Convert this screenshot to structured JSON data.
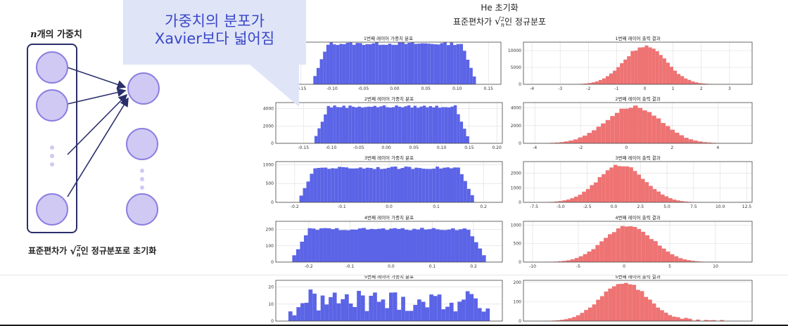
{
  "diagram": {
    "title_var": "n",
    "title_rest": "개의 가중치",
    "caption_pre": "표준편차가 ",
    "caption_post": "인 정규분포로 초기화",
    "sqrt_num": "2",
    "sqrt_den": "n"
  },
  "callout": {
    "line1": "가중치의 분포가",
    "line2": "Xavier보다 넓어짐"
  },
  "header": {
    "title": "He 초기화",
    "subtitle_pre": "표준편차가 ",
    "subtitle_post": "인 정규분포"
  },
  "colors": {
    "weight": "#5b64e6",
    "output": "#ee7373",
    "neuron": "#cfc9f4",
    "neuron_border": "#8b7fe0",
    "callout": "#dfe5f7"
  },
  "chart_data": [
    {
      "type": "bar",
      "title": "1번째 레이어 가중치 분포",
      "dist": "uniform",
      "xlim": [
        -0.19,
        0.17
      ],
      "data_range": [
        -0.13,
        0.13
      ],
      "peak": 12000,
      "ylim": [
        0,
        12000
      ],
      "yticks": [],
      "xticks": [
        -0.15,
        -0.1,
        -0.05,
        0.0,
        0.05,
        0.1,
        0.15
      ],
      "xtick_labels": [
        "-0.15",
        "-0.10",
        "-0.05",
        "0.00",
        "0.05",
        "0.10",
        "0.15"
      ]
    },
    {
      "type": "bar",
      "title": "1번째 레이어 출력 결과",
      "dist": "normal",
      "xlim": [
        -4.3,
        3.8
      ],
      "mu": 0.0,
      "sigma": 0.75,
      "peak": 11500,
      "ylim": [
        0,
        12500
      ],
      "yticks": [
        0,
        5000,
        10000
      ],
      "ytick_labels": [
        "0",
        "5000",
        "10000"
      ],
      "xticks": [
        -4,
        -3,
        -2,
        -1,
        0,
        1,
        2,
        3
      ],
      "xtick_labels": [
        "-4",
        "-3",
        "-2",
        "-1",
        "0",
        "1",
        "2",
        "3"
      ]
    },
    {
      "type": "bar",
      "title": "2번째 레이어 가중치 분포",
      "dist": "uniform",
      "xlim": [
        -0.2,
        0.21
      ],
      "data_range": [
        -0.13,
        0.15
      ],
      "peak": 4400,
      "ylim": [
        0,
        4700
      ],
      "yticks": [
        0,
        2000,
        4000
      ],
      "ytick_labels": [
        "0",
        "2000",
        "4000"
      ],
      "xticks": [
        -0.15,
        -0.1,
        -0.05,
        0.0,
        0.05,
        0.1,
        0.15,
        0.2
      ],
      "xtick_labels": [
        "-0.15",
        "-0.10",
        "-0.05",
        "0.00",
        "0.05",
        "0.10",
        "0.15",
        "0.20"
      ]
    },
    {
      "type": "bar",
      "title": "2번째 레이어 출력 결과",
      "dist": "normal",
      "xlim": [
        -4.5,
        5.5
      ],
      "mu": 0.3,
      "sigma": 1.2,
      "peak": 4200,
      "ylim": [
        0,
        4600
      ],
      "yticks": [
        0,
        2000,
        4000
      ],
      "ytick_labels": [
        "0",
        "2000",
        "4000"
      ],
      "xticks": [
        -4,
        -2,
        0,
        2,
        4
      ],
      "xtick_labels": [
        "-4",
        "-2",
        "0",
        "2",
        "4"
      ]
    },
    {
      "type": "bar",
      "title": "3번째 레이어 가중치 분포",
      "dist": "uniform",
      "xlim": [
        -0.24,
        0.24
      ],
      "data_range": [
        -0.19,
        0.18
      ],
      "peak": 950,
      "ylim": [
        0,
        1080
      ],
      "yticks": [
        0,
        500,
        1000
      ],
      "ytick_labels": [
        "0",
        "500",
        "1000"
      ],
      "xticks": [
        -0.2,
        -0.1,
        0.0,
        0.1,
        0.2
      ],
      "xtick_labels": [
        "-0.2",
        "-0.1",
        "0.0",
        "0.1",
        "0.2"
      ]
    },
    {
      "type": "bar",
      "title": "3번째 레이어 출력 결과",
      "dist": "normal",
      "xlim": [
        -8.5,
        13
      ],
      "mu": 0.7,
      "sigma": 2.2,
      "peak": 2600,
      "ylim": [
        0,
        2800
      ],
      "yticks": [
        0,
        1000,
        2000
      ],
      "ytick_labels": [
        "0",
        "1000",
        "2000"
      ],
      "xticks": [
        -7.5,
        -5.0,
        -2.5,
        0.0,
        2.5,
        5.0,
        7.5,
        10.0,
        12.5
      ],
      "xtick_labels": [
        "-7.5",
        "-5.0",
        "-2.5",
        "0.0",
        "2.5",
        "5.0",
        "7.5",
        "10.0",
        "12.5"
      ]
    },
    {
      "type": "bar",
      "title": "4번째 레이어 가중치 분포",
      "dist": "uniform",
      "xlim": [
        -0.28,
        0.27
      ],
      "data_range": [
        -0.24,
        0.23
      ],
      "peak": 210,
      "ylim": [
        0,
        250
      ],
      "yticks": [
        0,
        100,
        200
      ],
      "ytick_labels": [
        "0",
        "100",
        "200"
      ],
      "xticks": [
        -0.2,
        -0.1,
        0.0,
        0.1,
        0.2
      ],
      "xtick_labels": [
        "-0.2",
        "-0.1",
        "0.0",
        "0.1",
        "0.2"
      ]
    },
    {
      "type": "bar",
      "title": "4번째 레이어 출력 결과",
      "dist": "normal",
      "xlim": [
        -11,
        14
      ],
      "mu": 0.5,
      "sigma": 2.7,
      "peak": 1000,
      "ylim": [
        0,
        1100
      ],
      "yticks": [
        0,
        500,
        1000
      ],
      "ytick_labels": [
        "0",
        "500",
        "1000"
      ],
      "xticks": [
        -10,
        -5,
        0,
        5,
        10
      ],
      "xtick_labels": [
        "-10",
        "-5",
        "0",
        "5",
        "10"
      ]
    },
    {
      "type": "bar",
      "title": "5번째 레이어 가중치 분포",
      "dist": "uniform_noisy",
      "xlim": [
        -0.27,
        0.27
      ],
      "data_range": [
        -0.24,
        0.24
      ],
      "peak": 15,
      "ylim": [
        0,
        24
      ],
      "yticks": [
        0,
        10,
        20
      ],
      "ytick_labels": [
        "0",
        "10",
        "20"
      ],
      "xticks": [],
      "xtick_labels": []
    },
    {
      "type": "bar",
      "title": "5번째 레이어 출력 결과",
      "dist": "normal_tail",
      "xlim": [
        -11,
        14
      ],
      "mu": 0.0,
      "sigma": 2.6,
      "peak": 200,
      "ylim": [
        0,
        210
      ],
      "yticks": [
        0,
        100,
        200
      ],
      "ytick_labels": [
        "0",
        "100",
        "200"
      ],
      "xticks": [],
      "xtick_labels": []
    }
  ]
}
